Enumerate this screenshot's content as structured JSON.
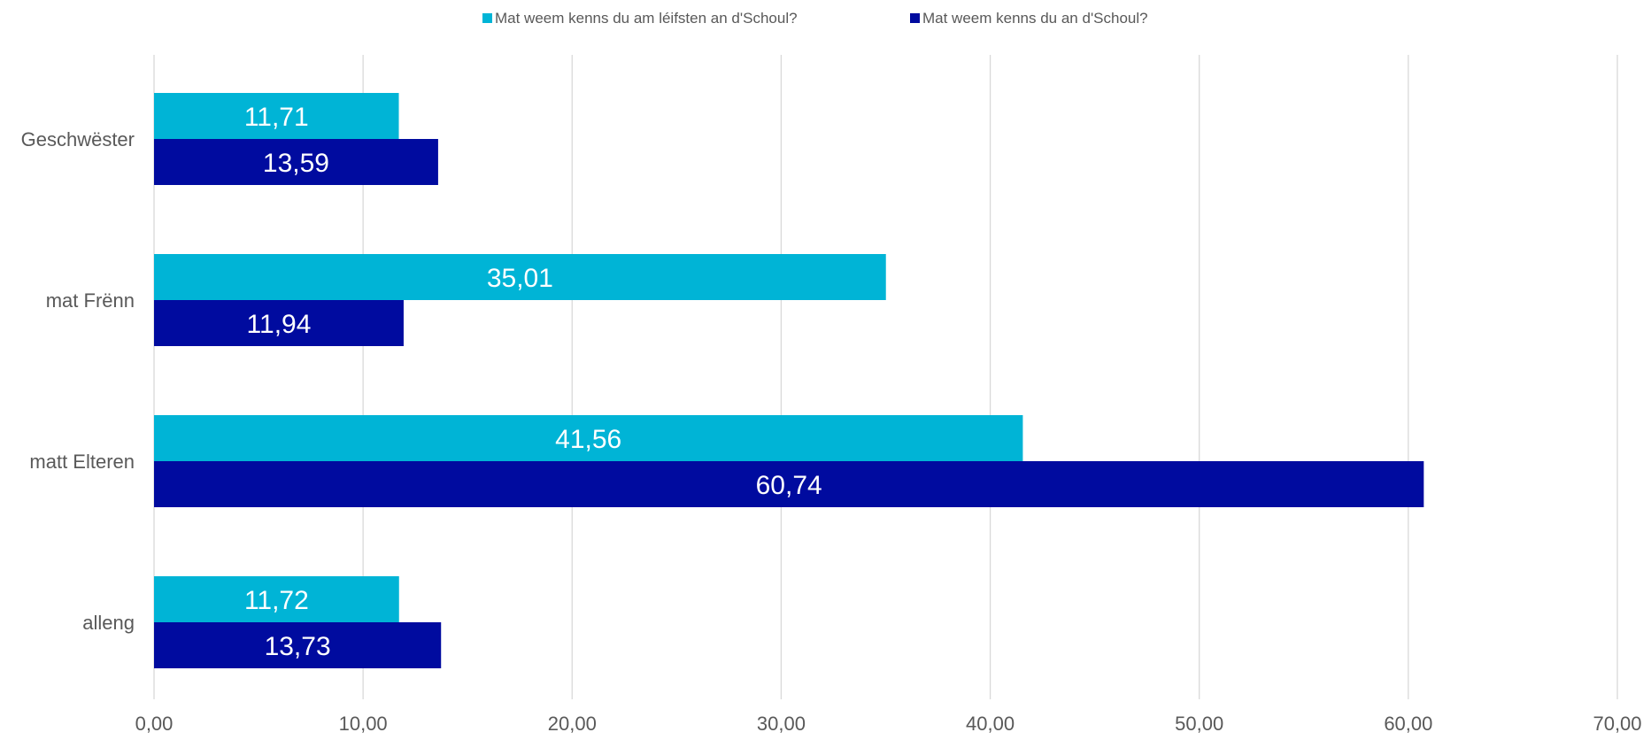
{
  "chart_data": {
    "type": "bar",
    "orientation": "horizontal",
    "title": "",
    "xlabel": "",
    "ylabel": "",
    "categories": [
      "Geschwëster",
      "mat Frënn",
      "matt Elteren",
      "alleng"
    ],
    "series": [
      {
        "name": "Mat weem kenns du am léifsten an d'Schoul?",
        "color": "#00B4D6",
        "values": [
          11.71,
          35.01,
          41.56,
          11.72
        ],
        "labels": [
          "11,71",
          "35,01",
          "41,56",
          "11,72"
        ]
      },
      {
        "name": "Mat weem kenns du an d'Schoul?",
        "color": "#000B9F",
        "values": [
          13.59,
          11.94,
          60.74,
          13.73
        ],
        "labels": [
          "13,59",
          "11,94",
          "60,74",
          "13,73"
        ]
      }
    ],
    "xlim": [
      0,
      70
    ],
    "x_ticks": [
      0,
      10,
      20,
      30,
      40,
      50,
      60,
      70
    ],
    "x_tick_labels": [
      "0,00",
      "10,00",
      "20,00",
      "30,00",
      "40,00",
      "50,00",
      "60,00",
      "70,00"
    ],
    "grid": "vertical",
    "gridline_color": "#D9D9D9",
    "legend_position": "top-center"
  }
}
